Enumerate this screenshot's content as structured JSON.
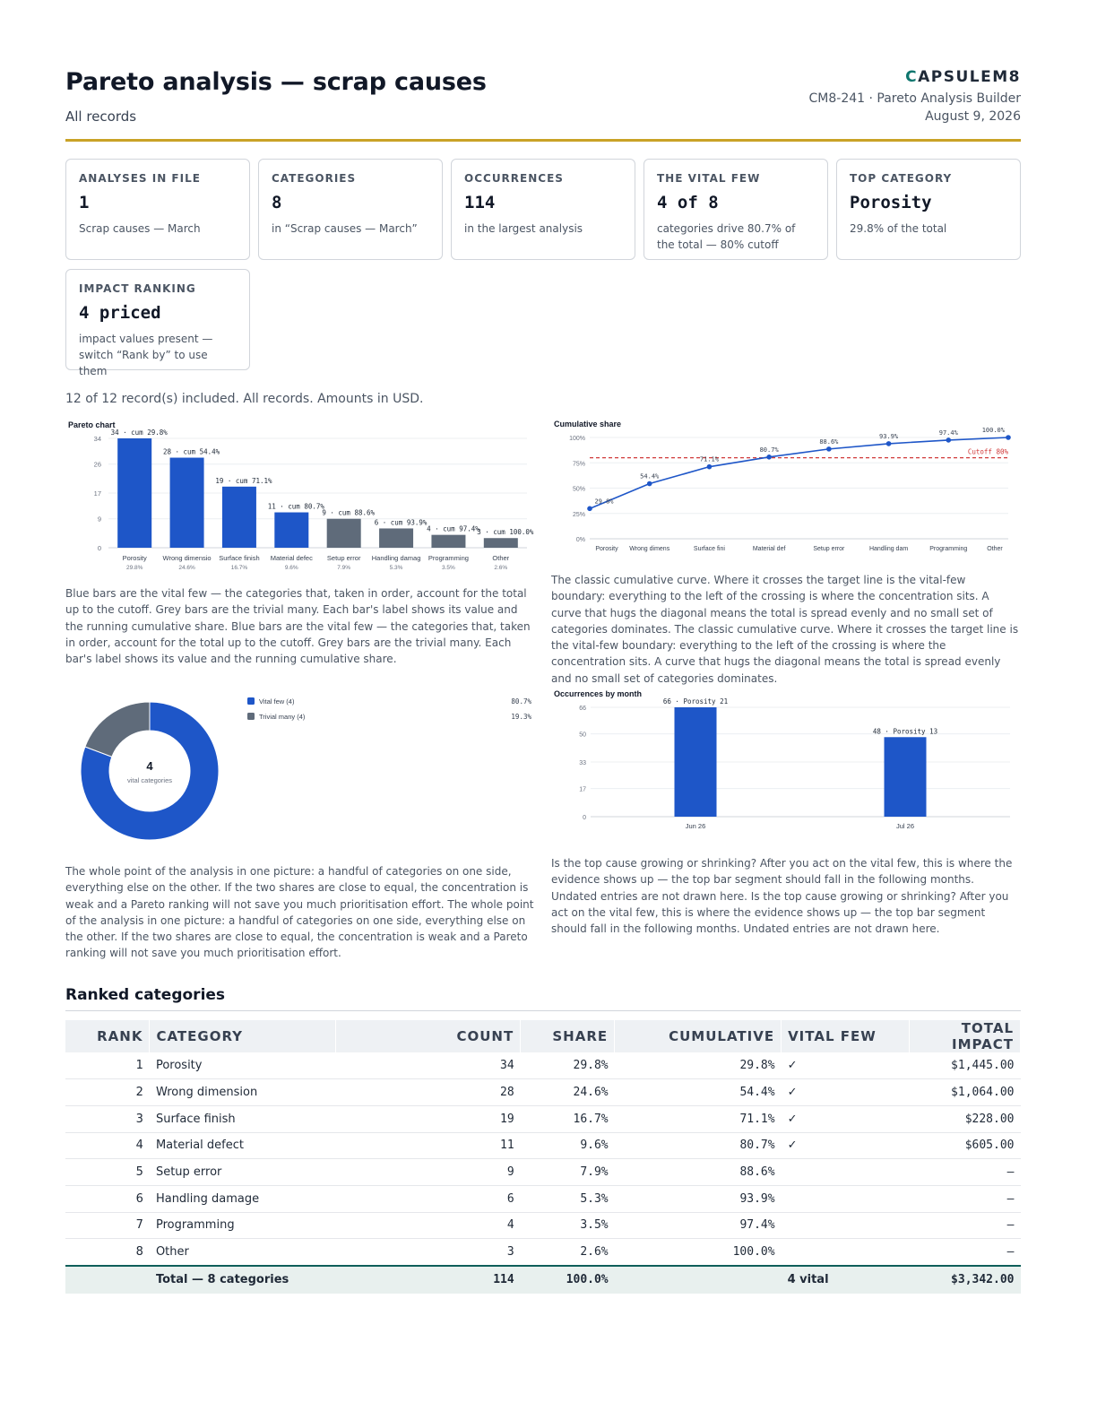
{
  "header": {
    "title": "Pareto analysis — scrap causes",
    "subtitle": "All records",
    "logo_mark": "C",
    "logo_text": "APSULEM8",
    "doc_line": "CM8-241 · Pareto Analysis Builder",
    "date": "August 9, 2026"
  },
  "cards": [
    {
      "label": "ANALYSES IN FILE",
      "value": "1",
      "note": "Scrap causes — March"
    },
    {
      "label": "CATEGORIES",
      "value": "8",
      "note": "in “Scrap causes — March”"
    },
    {
      "label": "OCCURRENCES",
      "value": "114",
      "note": "in the largest analysis"
    },
    {
      "label": "THE VITAL FEW",
      "value": "4 of 8",
      "note": "categories drive 80.7% of the total — 80% cutoff"
    },
    {
      "label": "TOP CATEGORY",
      "value": "Porosity",
      "note": "29.8% of the total"
    },
    {
      "label": "IMPACT RANKING",
      "value": "4 priced",
      "note": "impact values present — switch “Rank by” to use them"
    }
  ],
  "summary": "12 of 12 record(s) included. All records. Amounts in USD.",
  "colors": {
    "vital": "#1e56c8",
    "trivial": "#5f6b7a",
    "cutoff": "#d03a3a",
    "accent": "#c9a227",
    "teal": "#0f5f5a"
  },
  "chart_data": [
    {
      "type": "bar",
      "title": "Pareto chart",
      "categories": [
        "Porosity",
        "Wrong dimensio",
        "Surface finish",
        "Material defec",
        "Setup error",
        "Handling damag",
        "Programming",
        "Other"
      ],
      "shares": [
        "29.8%",
        "24.6%",
        "16.7%",
        "9.6%",
        "7.9%",
        "5.3%",
        "3.5%",
        "2.6%"
      ],
      "values": [
        34,
        28,
        19,
        11,
        9,
        6,
        4,
        3
      ],
      "vital": [
        true,
        true,
        true,
        true,
        false,
        false,
        false,
        false
      ],
      "bar_labels": [
        "34 · cum 29.8%",
        "28 · cum 54.4%",
        "19 · cum 71.1%",
        "11 · cum 80.7%",
        "9 · cum 88.6%",
        "6 · cum 93.9%",
        "4 · cum 97.4%",
        "3 · cum 100.0%"
      ],
      "yticks": [
        0,
        9,
        17,
        26,
        34
      ],
      "ylim": [
        0,
        34
      ]
    },
    {
      "type": "line",
      "title": "Cumulative share",
      "categories": [
        "Porosity",
        "Wrong dimens",
        "Surface fini",
        "Material def",
        "Setup error",
        "Handling dam",
        "Programming",
        "Other"
      ],
      "values": [
        29.8,
        54.4,
        71.1,
        80.7,
        88.6,
        93.9,
        97.4,
        100.0
      ],
      "point_labels": [
        "29.8%",
        "54.4%",
        "71.1%",
        "80.7%",
        "88.6%",
        "93.9%",
        "97.4%",
        "100.0%"
      ],
      "yticks": [
        "0%",
        "25%",
        "50%",
        "75%",
        "100%"
      ],
      "ylim": [
        0,
        100
      ],
      "cutoff": 80,
      "cutoff_label": "Cutoff 80%"
    },
    {
      "type": "pie",
      "slices": [
        {
          "name": "Vital few (4)",
          "value": 80.7,
          "label": "80.7%"
        },
        {
          "name": "Trivial many (4)",
          "value": 19.3,
          "label": "19.3%"
        }
      ],
      "center_value": "4",
      "center_label": "vital categories"
    },
    {
      "type": "bar",
      "title": "Occurrences by month",
      "categories": [
        "Jun 26",
        "Jul 26"
      ],
      "values": [
        66,
        48
      ],
      "bar_labels": [
        "66 · Porosity 21",
        "48 · Porosity 13"
      ],
      "yticks": [
        0,
        17,
        33,
        50,
        66
      ],
      "ylim": [
        0,
        66
      ]
    }
  ],
  "captions": {
    "pareto": "Blue bars are the vital few — the categories that, taken in order, account for the total up to the cutoff. Grey bars are the trivial many. Each bar's label shows its value and the running cumulative share. Blue bars are the vital few — the categories that, taken in order, account for the total up to the cutoff. Grey bars are the trivial many. Each bar's label shows its value and the running cumulative share.",
    "cumulative": "The classic cumulative curve. Where it crosses the target line is the vital-few boundary: everything to the left of the crossing is where the concentration sits. A curve that hugs the diagonal means the total is spread evenly and no small set of categories dominates. The classic cumulative curve. Where it crosses the target line is the vital-few boundary: everything to the left of the crossing is where the concentration sits. A curve that hugs the diagonal means the total is spread evenly and no small set of categories dominates.",
    "donut": "The whole point of the analysis in one picture: a handful of categories on one side, everything else on the other. If the two shares are close to equal, the concentration is weak and a Pareto ranking will not save you much prioritisation effort. The whole point of the analysis in one picture: a handful of categories on one side, everything else on the other. If the two shares are close to equal, the concentration is weak and a Pareto ranking will not save you much prioritisation effort.",
    "monthly": "Is the top cause growing or shrinking? After you act on the vital few, this is where the evidence shows up — the top bar segment should fall in the following months. Undated entries are not drawn here. Is the top cause growing or shrinking? After you act on the vital few, this is where the evidence shows up — the top bar segment should fall in the following months. Undated entries are not drawn here."
  },
  "table": {
    "title": "Ranked categories",
    "headers": [
      "RANK",
      "CATEGORY",
      "COUNT",
      "SHARE",
      "CUMULATIVE",
      "VITAL FEW",
      "TOTAL IMPACT"
    ],
    "rows": [
      [
        "1",
        "Porosity",
        "34",
        "29.8%",
        "29.8%",
        "✓",
        "$1,445.00"
      ],
      [
        "2",
        "Wrong dimension",
        "28",
        "24.6%",
        "54.4%",
        "✓",
        "$1,064.00"
      ],
      [
        "3",
        "Surface finish",
        "19",
        "16.7%",
        "71.1%",
        "✓",
        "$228.00"
      ],
      [
        "4",
        "Material defect",
        "11",
        "9.6%",
        "80.7%",
        "✓",
        "$605.00"
      ],
      [
        "5",
        "Setup error",
        "9",
        "7.9%",
        "88.6%",
        "",
        "–"
      ],
      [
        "6",
        "Handling damage",
        "6",
        "5.3%",
        "93.9%",
        "",
        "–"
      ],
      [
        "7",
        "Programming",
        "4",
        "3.5%",
        "97.4%",
        "",
        "–"
      ],
      [
        "8",
        "Other",
        "3",
        "2.6%",
        "100.0%",
        "",
        "–"
      ]
    ],
    "total": {
      "label": "Total — 8 categories",
      "count": "114",
      "share": "100.0%",
      "vital": "4 vital",
      "impact": "$3,342.00"
    }
  }
}
